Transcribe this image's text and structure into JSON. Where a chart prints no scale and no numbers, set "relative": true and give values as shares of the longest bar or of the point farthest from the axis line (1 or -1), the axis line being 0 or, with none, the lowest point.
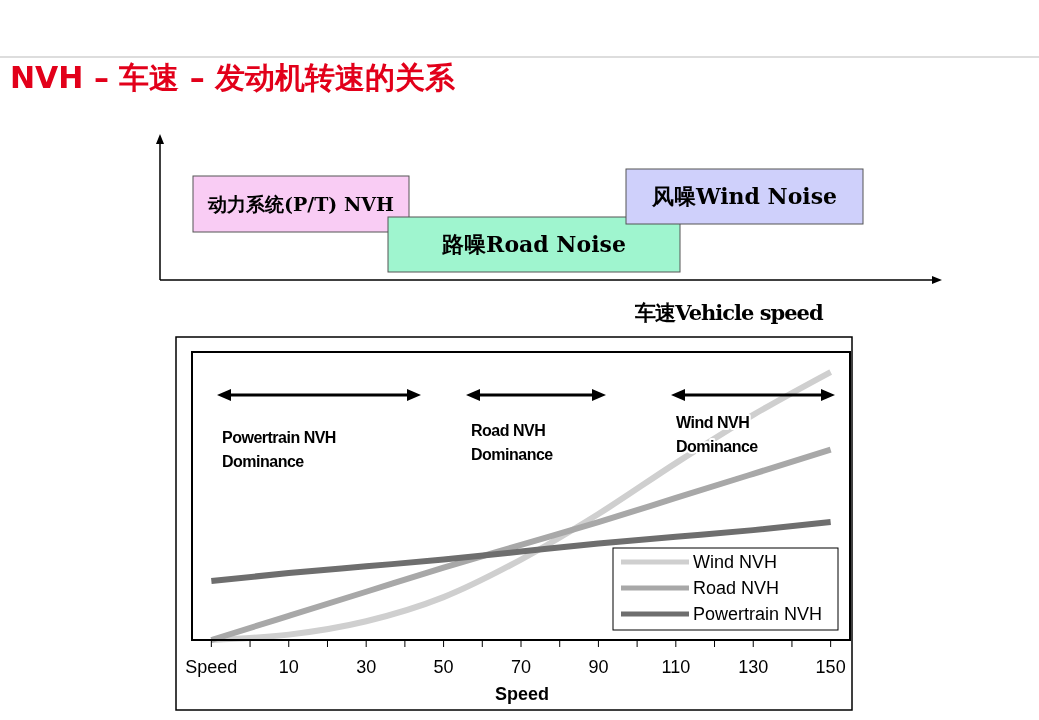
{
  "chart_data": [
    {
      "type": "other",
      "title": "NVH – 车速 – 发动机转速的关系",
      "xlabel": "车速Vehicle speed",
      "annotations": [
        "动力系统(P/T) NVH",
        "路噪Road Noise",
        "风噪Wind Noise"
      ]
    },
    {
      "type": "line",
      "relative": true,
      "xlabel": "Speed",
      "x": [
        -10,
        10,
        30,
        50,
        70,
        90,
        110,
        130,
        150
      ],
      "xlim": [
        -15,
        155
      ],
      "xticks": [
        {
          "value": -10,
          "label": "Speed"
        },
        {
          "value": 0,
          "label": null
        },
        10,
        {
          "value": 20,
          "label": null
        },
        30,
        {
          "value": 40,
          "label": null
        },
        50,
        {
          "value": 60,
          "label": null
        },
        70,
        {
          "value": 80,
          "label": null
        },
        90,
        {
          "value": 100,
          "label": null
        },
        110,
        {
          "value": 120,
          "label": null
        },
        130,
        {
          "value": 140,
          "label": null
        },
        150
      ],
      "tick_labels": "x",
      "grid": false,
      "legend": "bottom right",
      "marker": "none",
      "series": [
        {
          "name": "Wind NVH",
          "color": "#cfcfcf",
          "values": [
            0,
            0.02,
            0.07,
            0.16,
            0.3,
            0.47,
            0.66,
            0.84,
            1.0
          ]
        },
        {
          "name": "Road NVH",
          "color": "#a8a8a8",
          "values": [
            0,
            0.09,
            0.18,
            0.27,
            0.355,
            0.44,
            0.53,
            0.62,
            0.71
          ]
        },
        {
          "name": "Powertrain NVH",
          "color": "#6e6e6e",
          "values": [
            0.22,
            0.25,
            0.275,
            0.3,
            0.33,
            0.36,
            0.385,
            0.41,
            0.44
          ]
        }
      ],
      "annotations": [
        "Powertrain NVH\nDominance",
        "Road NVH\nDominance",
        "Wind NVH\nDominance"
      ]
    }
  ]
}
